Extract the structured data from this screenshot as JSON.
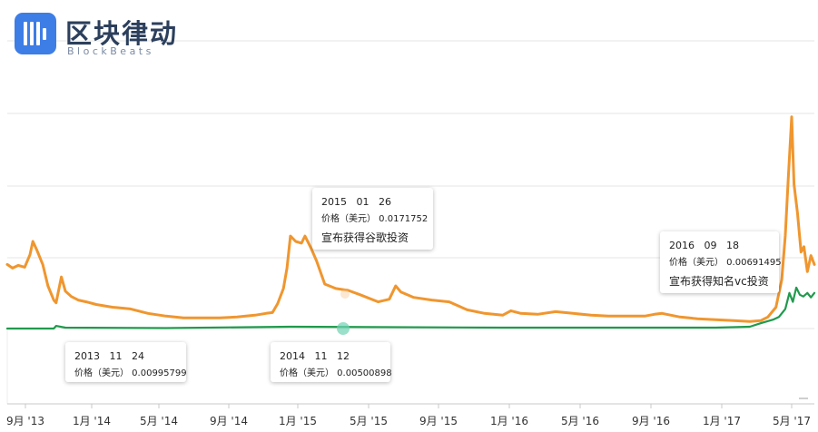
{
  "brand": {
    "name": "区块律动",
    "sub": "BlockBeats"
  },
  "chart_data": {
    "type": "line",
    "x_ticks": [
      "9月 '13",
      "1月 '14",
      "5月 '14",
      "9月 '14",
      "1月 '15",
      "5月 '15",
      "9月 '15",
      "1月 '16",
      "5月 '16",
      "9月 '16",
      "1月 '17",
      "5月 '17"
    ],
    "x_range": [
      "2013-09-01",
      "2017-06-20"
    ],
    "grid": true,
    "series": [
      {
        "color": "#f0962e",
        "points": [
          [
            "2013-09-01",
            0.0072
          ],
          [
            "2013-09-10",
            0.0068
          ],
          [
            "2013-09-20",
            0.0071
          ],
          [
            "2013-10-01",
            0.0069
          ],
          [
            "2013-10-10",
            0.0083
          ],
          [
            "2013-10-15",
            0.0098
          ],
          [
            "2013-10-22",
            0.0088
          ],
          [
            "2013-11-01",
            0.0072
          ],
          [
            "2013-11-10",
            0.0048
          ],
          [
            "2013-11-20",
            0.0032
          ],
          [
            "2013-11-24",
            0.0029
          ],
          [
            "2013-12-03",
            0.0058
          ],
          [
            "2013-12-10",
            0.0042
          ],
          [
            "2013-12-20",
            0.0036
          ],
          [
            "2014-01-01",
            0.0032
          ],
          [
            "2014-01-15",
            0.003
          ],
          [
            "2014-02-01",
            0.0027
          ],
          [
            "2014-03-01",
            0.0024
          ],
          [
            "2014-04-01",
            0.0022
          ],
          [
            "2014-05-01",
            0.0017
          ],
          [
            "2014-06-01",
            0.0014
          ],
          [
            "2014-07-01",
            0.0012
          ],
          [
            "2014-08-01",
            0.0012
          ],
          [
            "2014-09-01",
            0.0012
          ],
          [
            "2014-10-01",
            0.0013
          ],
          [
            "2014-11-01",
            0.0015
          ],
          [
            "2014-11-20",
            0.0017
          ],
          [
            "2014-12-01",
            0.0018
          ],
          [
            "2014-12-10",
            0.0028
          ],
          [
            "2014-12-20",
            0.0045
          ],
          [
            "2014-12-26",
            0.0068
          ],
          [
            "2015-01-01",
            0.0104
          ],
          [
            "2015-01-10",
            0.0098
          ],
          [
            "2015-01-20",
            0.0096
          ],
          [
            "2015-01-26",
            0.0104
          ],
          [
            "2015-02-05",
            0.0091
          ],
          [
            "2015-02-15",
            0.0076
          ],
          [
            "2015-03-01",
            0.005
          ],
          [
            "2015-03-20",
            0.0045
          ],
          [
            "2015-04-10",
            0.0043
          ],
          [
            "2015-05-01",
            0.0038
          ],
          [
            "2015-06-01",
            0.003
          ],
          [
            "2015-06-20",
            0.0033
          ],
          [
            "2015-07-01",
            0.0048
          ],
          [
            "2015-07-10",
            0.0041
          ],
          [
            "2015-08-01",
            0.0035
          ],
          [
            "2015-09-01",
            0.0032
          ],
          [
            "2015-10-01",
            0.003
          ],
          [
            "2015-11-01",
            0.0021
          ],
          [
            "2015-12-01",
            0.0017
          ],
          [
            "2016-01-01",
            0.0015
          ],
          [
            "2016-01-15",
            0.002
          ],
          [
            "2016-02-01",
            0.0017
          ],
          [
            "2016-03-01",
            0.0016
          ],
          [
            "2016-04-01",
            0.0019
          ],
          [
            "2016-05-01",
            0.0017
          ],
          [
            "2016-06-01",
            0.0015
          ],
          [
            "2016-07-01",
            0.0014
          ],
          [
            "2016-08-01",
            0.0014
          ],
          [
            "2016-09-01",
            0.0014
          ],
          [
            "2016-09-18",
            0.0016
          ],
          [
            "2016-10-01",
            0.0017
          ],
          [
            "2016-11-01",
            0.0013
          ],
          [
            "2016-12-01",
            0.0011
          ],
          [
            "2017-01-01",
            0.001
          ],
          [
            "2017-02-01",
            0.0009
          ],
          [
            "2017-03-01",
            0.0008
          ],
          [
            "2017-03-20",
            0.0009
          ],
          [
            "2017-04-01",
            0.0013
          ],
          [
            "2017-04-15",
            0.0024
          ],
          [
            "2017-04-25",
            0.0055
          ],
          [
            "2017-05-01",
            0.0105
          ],
          [
            "2017-05-06",
            0.0168
          ],
          [
            "2017-05-12",
            0.0238
          ],
          [
            "2017-05-16",
            0.0162
          ],
          [
            "2017-05-22",
            0.013
          ],
          [
            "2017-05-28",
            0.0086
          ],
          [
            "2017-06-02",
            0.0092
          ],
          [
            "2017-06-08",
            0.0064
          ],
          [
            "2017-06-14",
            0.0082
          ],
          [
            "2017-06-20",
            0.0072
          ]
        ]
      },
      {
        "color": "#1f9a4c",
        "points": [
          [
            "2013-09-01",
            0.0
          ],
          [
            "2013-11-20",
            0.0
          ],
          [
            "2013-11-24",
            0.0003
          ],
          [
            "2013-12-10",
            0.0001
          ],
          [
            "2014-06-01",
            5e-05
          ],
          [
            "2015-01-01",
            0.0002
          ],
          [
            "2016-01-01",
            0.0001
          ],
          [
            "2017-01-01",
            0.0001
          ],
          [
            "2017-03-01",
            0.0002
          ],
          [
            "2017-03-20",
            0.0006
          ],
          [
            "2017-04-10",
            0.001
          ],
          [
            "2017-04-20",
            0.0013
          ],
          [
            "2017-05-01",
            0.0022
          ],
          [
            "2017-05-08",
            0.004
          ],
          [
            "2017-05-14",
            0.003
          ],
          [
            "2017-05-20",
            0.0046
          ],
          [
            "2017-05-26",
            0.0038
          ],
          [
            "2017-06-01",
            0.0036
          ],
          [
            "2017-06-08",
            0.004
          ],
          [
            "2017-06-14",
            0.0035
          ],
          [
            "2017-06-20",
            0.004
          ]
        ]
      }
    ],
    "tooltips": [
      {
        "date": "2013   11   24",
        "price": "价格（美元） 0.00995799",
        "note": ""
      },
      {
        "date": "2014   11   12",
        "price": "价格（美元） 0.00500898",
        "note": ""
      },
      {
        "date": "2015   01   26",
        "price": "价格（美元） 0.0171752",
        "note": "宣布获得谷歌投资"
      },
      {
        "date": "2016   09   18",
        "price": "价格（美元） 0.00691495",
        "note": "宣布获得知名vc投资"
      }
    ]
  }
}
